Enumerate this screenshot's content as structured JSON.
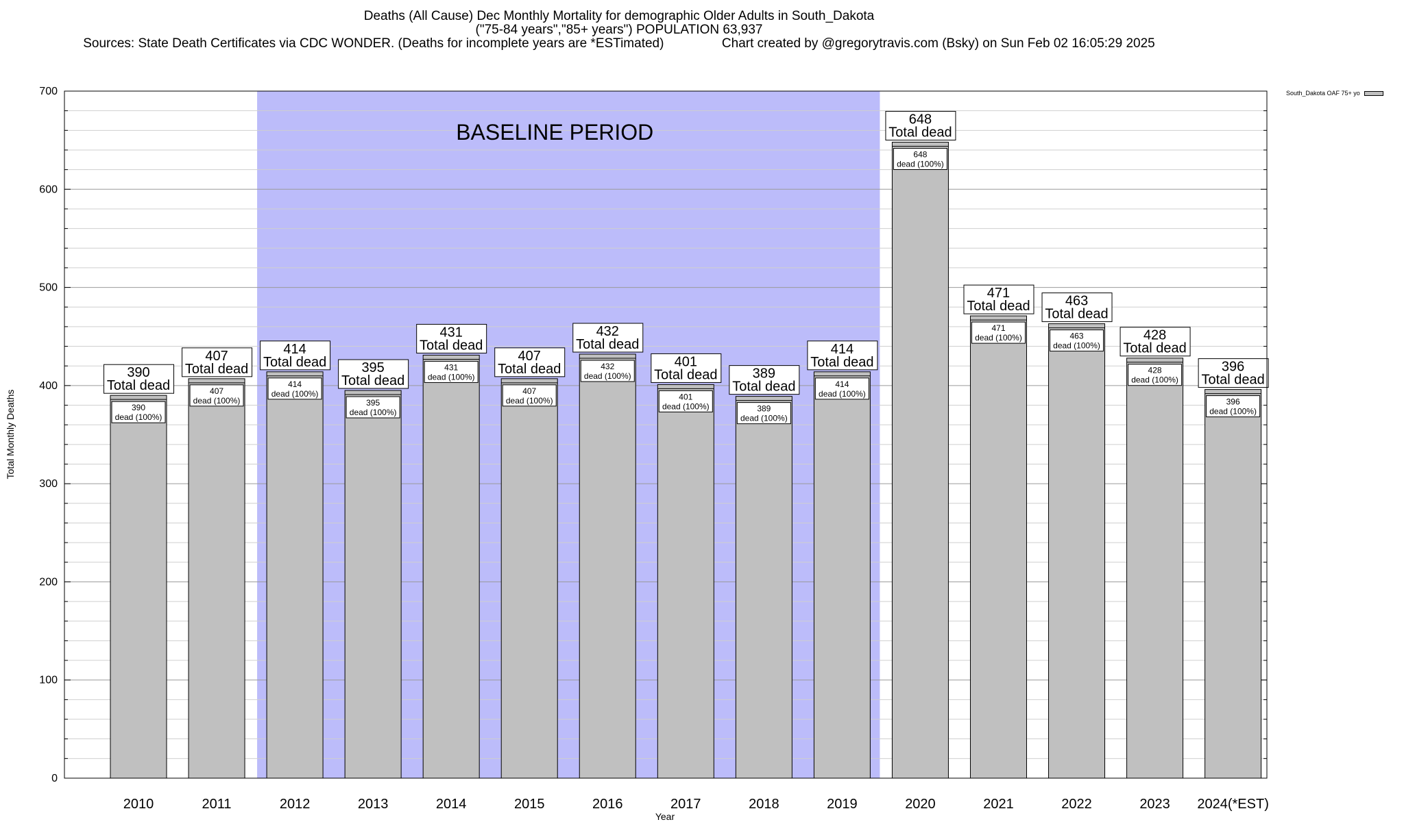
{
  "header": {
    "title_line1": "Deaths (All Cause) Dec Monthly Mortality for demographic Older Adults in South_Dakota",
    "title_line2": "(\"75-84 years\",\"85+ years\") POPULATION 63,937",
    "sources": "Sources: State Death Certificates via CDC WONDER. (Deaths for incomplete years are *ESTimated)",
    "credit": "Chart created by @gregorytravis.com (Bsky) on Sun Feb 02 16:05:29 2025"
  },
  "legend": {
    "label": "South_Dakota OAF 75+ yo"
  },
  "chart_data": {
    "type": "bar",
    "title": "Deaths (All Cause) Dec Monthly Mortality for demographic Older Adults in South_Dakota",
    "xlabel": "Year",
    "ylabel": "Total Monthly Deaths",
    "ylim": [
      0,
      700
    ],
    "yticks": [
      0,
      100,
      200,
      300,
      400,
      500,
      600,
      700
    ],
    "grid": true,
    "legend_position": "top-right",
    "categories": [
      "2010",
      "2011",
      "2012",
      "2013",
      "2014",
      "2015",
      "2016",
      "2017",
      "2018",
      "2019",
      "2020",
      "2021",
      "2022",
      "2023",
      "2024(*EST)"
    ],
    "series": [
      {
        "name": "South_Dakota OAF 75+ yo",
        "values": [
          390,
          407,
          414,
          395,
          431,
          407,
          432,
          401,
          389,
          414,
          648,
          471,
          463,
          428,
          396
        ]
      }
    ],
    "total_label": "Total dead",
    "inner_label": "dead (100%)",
    "baseline": {
      "label": "BASELINE PERIOD",
      "start": "2012",
      "end": "2019",
      "color": "#bcbcfa"
    },
    "bar_color": "#c0c0c0"
  }
}
